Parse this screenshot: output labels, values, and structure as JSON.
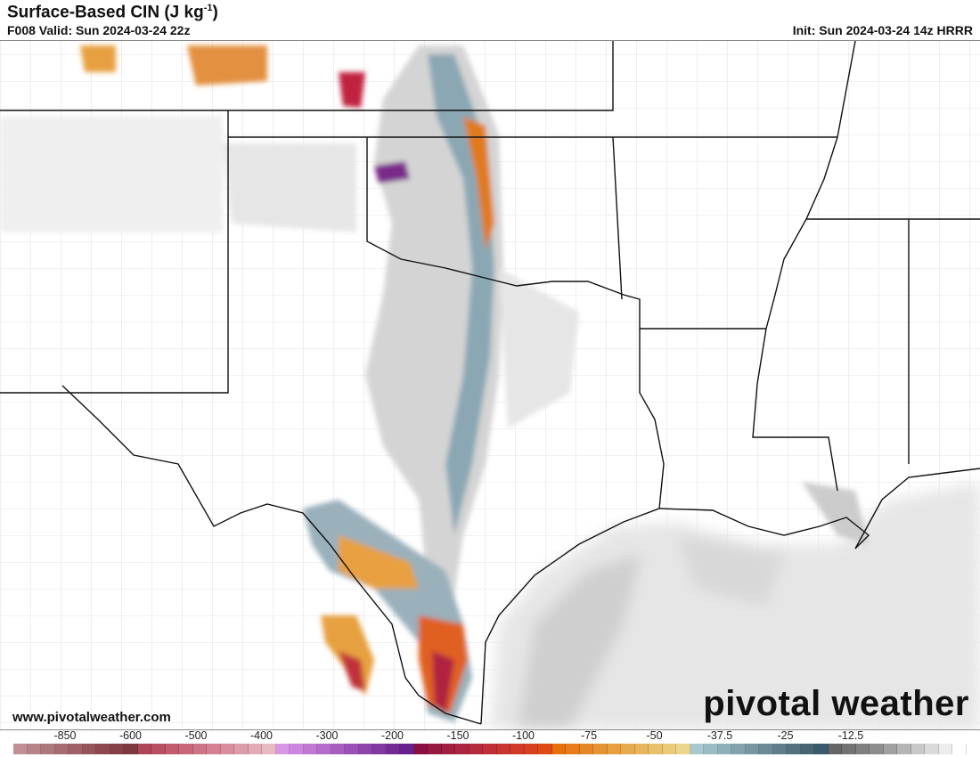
{
  "header": {
    "title": "Surface-Based CIN (J kg",
    "title_sup": "-1",
    "title_end": ")",
    "valid": "F008 Valid: Sun 2024-03-24 22z",
    "init": "Init: Sun 2024-03-24 14z HRRR"
  },
  "footer": {
    "website": "www.pivotalweather.com",
    "logo": "pivotal weather"
  },
  "colorbar": {
    "labels": [
      "-850",
      "-600",
      "-500",
      "-400",
      "-300",
      "-200",
      "-150",
      "-100",
      "-75",
      "-50",
      "-37.5",
      "-25",
      "-12.5"
    ],
    "colors": [
      "#c09095",
      "#b88388",
      "#ad777c",
      "#a66b71",
      "#9e5f66",
      "#96545b",
      "#8e4950",
      "#874047",
      "#7e3840",
      "#b04458",
      "#b94f63",
      "#c25b6e",
      "#c9667a",
      "#cf7386",
      "#d48091",
      "#d98e9d",
      "#dd9ca9",
      "#e2aab5",
      "#e7b9c1",
      "#d896e6",
      "#cc86dd",
      "#c078d3",
      "#b46bc9",
      "#a75ebf",
      "#9a51b5",
      "#8e44ab",
      "#8138a0",
      "#742b96",
      "#68208c",
      "#8a0f40",
      "#961a40",
      "#a11f40",
      "#ac2540",
      "#b52a3c",
      "#bf2f35",
      "#c8342e",
      "#d13a26",
      "#d9401e",
      "#e04a15",
      "#e67009",
      "#e67c1a",
      "#e68727",
      "#e69333",
      "#e79f3f",
      "#e7aa4d",
      "#e8b55c",
      "#e9c06b",
      "#eacb7a",
      "#ebd68b",
      "#a6c9ce",
      "#9abcc3",
      "#8eb0b8",
      "#82a3ad",
      "#7697a2",
      "#6a8a97",
      "#5e7e8c",
      "#527281",
      "#466676",
      "#3a5a6b",
      "#666666",
      "#737373",
      "#808080",
      "#8d8d8d",
      "#a0a0a0",
      "#b5b5b5",
      "#c8c8c8",
      "#dadada",
      "#ececec",
      "#ffffff"
    ]
  }
}
